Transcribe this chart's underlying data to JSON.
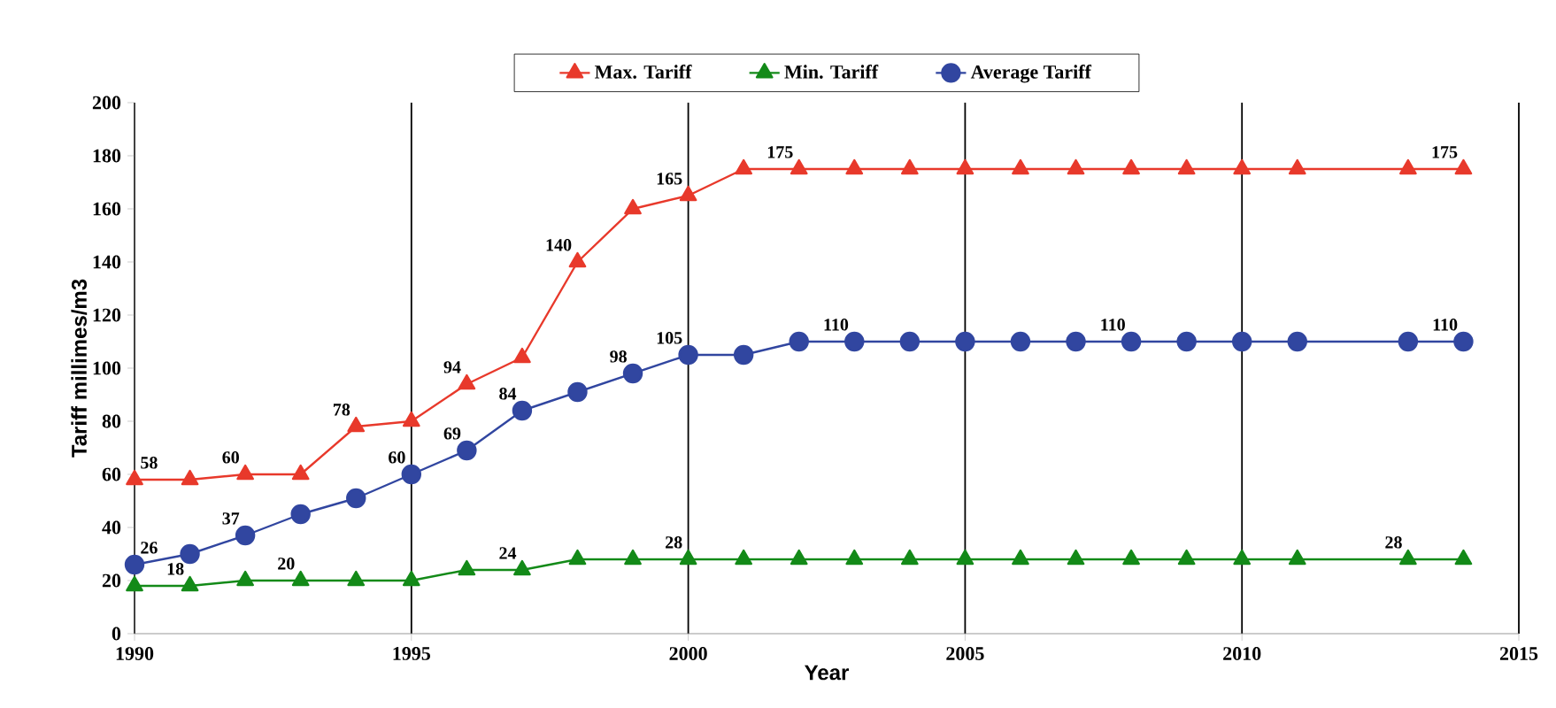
{
  "chart_data": {
    "type": "line",
    "xlabel": "Year",
    "ylabel": "Tariff millimes/m3",
    "xlim": [
      1990,
      2015
    ],
    "xticks": [
      1990,
      1995,
      2000,
      2005,
      2010,
      2015
    ],
    "ylim": [
      0,
      200
    ],
    "yticks": [
      0,
      20,
      40,
      60,
      80,
      100,
      120,
      140,
      160,
      180,
      200
    ],
    "grid": "x",
    "legend": "top",
    "x": [
      1990,
      1991,
      1992,
      1993,
      1994,
      1995,
      1996,
      1997,
      1998,
      1999,
      2000,
      2001,
      2002,
      2003,
      2004,
      2005,
      2006,
      2007,
      2008,
      2009,
      2010,
      2011,
      2013,
      2014
    ],
    "series": [
      {
        "name": "Max. Tariff",
        "color": "#e8392b",
        "marker": "triangle",
        "values": [
          58,
          58,
          60,
          60,
          78,
          80,
          94,
          104,
          140,
          160,
          165,
          175,
          175,
          175,
          175,
          175,
          175,
          175,
          175,
          175,
          175,
          175,
          175,
          175
        ],
        "value_labels": [
          "58",
          null,
          "60",
          null,
          "78",
          null,
          "94",
          null,
          "140",
          null,
          "165",
          null,
          "175",
          null,
          null,
          null,
          null,
          null,
          null,
          null,
          null,
          null,
          null,
          "175"
        ]
      },
      {
        "name": "Min. Tariff",
        "color": "#138a18",
        "marker": "triangle",
        "values": [
          18,
          18,
          20,
          20,
          20,
          20,
          24,
          24,
          28,
          28,
          28,
          28,
          28,
          28,
          28,
          28,
          28,
          28,
          28,
          28,
          28,
          28,
          28,
          28
        ],
        "value_labels": [
          null,
          "18",
          null,
          "20",
          null,
          null,
          null,
          "24",
          null,
          null,
          "28",
          null,
          null,
          null,
          null,
          null,
          null,
          null,
          null,
          null,
          null,
          null,
          "28",
          null
        ]
      },
      {
        "name": "Average Tariff",
        "color": "#3146a0",
        "marker": "circle",
        "values": [
          26,
          30,
          37,
          45,
          51,
          60,
          69,
          84,
          91,
          98,
          105,
          105,
          110,
          110,
          110,
          110,
          110,
          110,
          110,
          110,
          110,
          110,
          110,
          110
        ],
        "value_labels": [
          "26",
          null,
          "37",
          null,
          null,
          "60",
          "69",
          "84",
          null,
          "98",
          "105",
          null,
          null,
          "110",
          null,
          null,
          null,
          null,
          "110",
          null,
          null,
          null,
          null,
          "110"
        ]
      }
    ]
  }
}
